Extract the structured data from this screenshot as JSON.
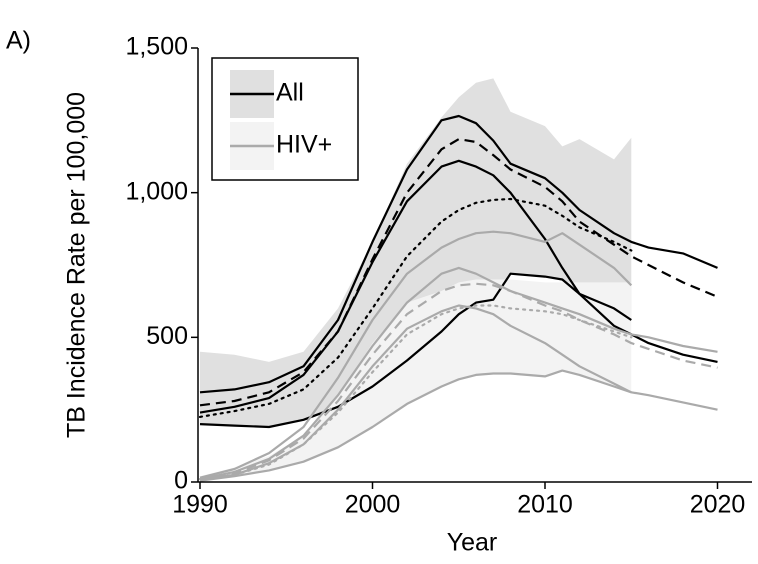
{
  "chart_data": {
    "type": "line",
    "panel_label": "A)",
    "x_label": "Year",
    "y_label": "TB Incidence Rate per 100,000",
    "xlim": [
      1990,
      2022
    ],
    "ylim": [
      0,
      1500
    ],
    "xticks": [
      1990,
      2000,
      2010,
      2020
    ],
    "yticks": [
      0,
      500,
      {
        "value": 1000,
        "label": "1,000"
      },
      {
        "value": 1500,
        "label": "1,500"
      }
    ],
    "x": [
      1990,
      1992,
      1994,
      1996,
      1998,
      2000,
      2002,
      2004,
      2005,
      2006,
      2007,
      2008,
      2010,
      2011,
      2012,
      2014,
      2015,
      2016,
      2018,
      2020
    ],
    "legend": [
      {
        "name": "All",
        "color": "#000000",
        "fill": "#e0e0e0"
      },
      {
        "name": "HIV+",
        "color": "#aaaaaa",
        "fill": "#f3f3f3"
      }
    ],
    "legend_position": "upper left",
    "bands": [
      {
        "color": "#e0e0e0",
        "upper": [
          450,
          440,
          415,
          450,
          600,
          830,
          1100,
          1260,
          1330,
          1380,
          1395,
          1280,
          1230,
          1160,
          1185,
          1115,
          1190,
          null,
          null,
          null
        ],
        "lower": [
          200,
          195,
          190,
          215,
          260,
          330,
          420,
          520,
          580,
          620,
          630,
          720,
          710,
          700,
          650,
          600,
          560,
          null,
          null,
          null
        ]
      },
      {
        "color": "#f3f3f3",
        "upper": [
          20,
          50,
          90,
          160,
          300,
          480,
          620,
          660,
          690,
          700,
          700,
          700,
          690,
          690,
          690,
          690,
          690,
          null,
          null,
          null
        ],
        "lower": [
          5,
          20,
          40,
          70,
          120,
          190,
          270,
          330,
          355,
          370,
          375,
          375,
          365,
          385,
          370,
          330,
          310,
          null,
          null,
          null
        ]
      }
    ],
    "series": [
      {
        "color": "#000000",
        "dash": "solid",
        "values": [
          200,
          195,
          190,
          215,
          260,
          330,
          420,
          520,
          580,
          620,
          630,
          720,
          710,
          700,
          650,
          600,
          560,
          null,
          null,
          null
        ]
      },
      {
        "color": "#000000",
        "dash": "solid",
        "values": [
          310,
          320,
          345,
          400,
          560,
          830,
          1080,
          1250,
          1265,
          1240,
          1180,
          1100,
          1050,
          1000,
          940,
          860,
          830,
          810,
          790,
          740
        ]
      },
      {
        "color": "#000000",
        "dash": "dashed",
        "values": [
          265,
          280,
          310,
          380,
          520,
          770,
          1000,
          1150,
          1185,
          1175,
          1130,
          1080,
          1020,
          970,
          900,
          820,
          780,
          750,
          690,
          640
        ]
      },
      {
        "color": "#000000",
        "dash": "dotted",
        "values": [
          225,
          245,
          270,
          320,
          430,
          600,
          780,
          900,
          940,
          965,
          975,
          978,
          955,
          920,
          880,
          830,
          800,
          null,
          null,
          null
        ]
      },
      {
        "color": "#000000",
        "dash": "solid",
        "values": [
          240,
          260,
          290,
          370,
          520,
          760,
          970,
          1090,
          1110,
          1090,
          1060,
          1000,
          840,
          740,
          650,
          540,
          510,
          480,
          440,
          415
        ]
      },
      {
        "color": "#aaaaaa",
        "dash": "solid",
        "values": [
          5,
          20,
          40,
          70,
          120,
          190,
          270,
          330,
          355,
          370,
          375,
          375,
          365,
          385,
          370,
          330,
          310,
          300,
          275,
          250
        ]
      },
      {
        "color": "#aaaaaa",
        "dash": "solid",
        "values": [
          15,
          45,
          100,
          190,
          360,
          560,
          720,
          810,
          840,
          860,
          865,
          860,
          830,
          860,
          820,
          740,
          680,
          null,
          null,
          null
        ]
      },
      {
        "color": "#aaaaaa",
        "dash": "solid",
        "values": [
          10,
          35,
          80,
          160,
          300,
          470,
          620,
          720,
          740,
          720,
          690,
          660,
          620,
          600,
          580,
          530,
          510,
          500,
          470,
          450
        ]
      },
      {
        "color": "#aaaaaa",
        "dash": "dashed",
        "values": [
          10,
          30,
          75,
          150,
          280,
          440,
          580,
          660,
          680,
          685,
          680,
          660,
          610,
          590,
          560,
          510,
          480,
          460,
          420,
          395
        ]
      },
      {
        "color": "#aaaaaa",
        "dash": "dotted",
        "values": [
          10,
          25,
          60,
          130,
          240,
          380,
          510,
          580,
          600,
          610,
          610,
          600,
          590,
          580,
          560,
          520,
          500,
          null,
          null,
          null
        ]
      },
      {
        "color": "#aaaaaa",
        "dash": "solid",
        "values": [
          8,
          25,
          65,
          130,
          250,
          400,
          530,
          590,
          610,
          600,
          580,
          540,
          480,
          440,
          400,
          340,
          310,
          null,
          null,
          null
        ]
      }
    ]
  }
}
